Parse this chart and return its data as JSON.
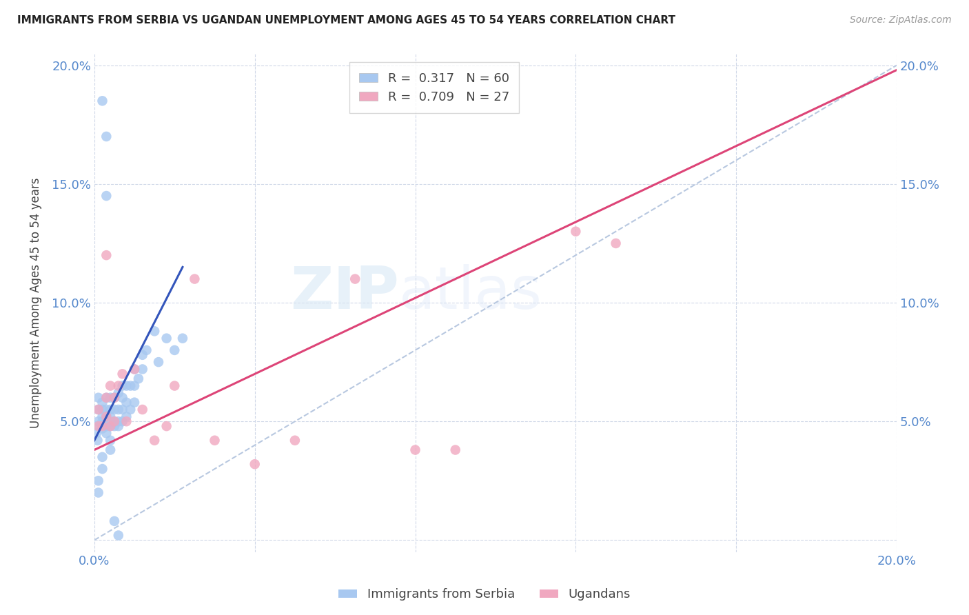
{
  "title": "IMMIGRANTS FROM SERBIA VS UGANDAN UNEMPLOYMENT AMONG AGES 45 TO 54 YEARS CORRELATION CHART",
  "source": "Source: ZipAtlas.com",
  "ylabel": "Unemployment Among Ages 45 to 54 years",
  "xlim": [
    0,
    0.2
  ],
  "ylim": [
    -0.005,
    0.205
  ],
  "legend1_label": "Immigrants from Serbia",
  "legend2_label": "Ugandans",
  "R1": 0.317,
  "N1": 60,
  "R2": 0.709,
  "N2": 27,
  "blue_color": "#a8c8f0",
  "pink_color": "#f0a8c0",
  "blue_line_color": "#3355bb",
  "pink_line_color": "#dd4477",
  "diagonal_color": "#b8c8e0",
  "serbia_x": [
    0.0005,
    0.0008,
    0.001,
    0.001,
    0.001,
    0.001,
    0.002,
    0.002,
    0.002,
    0.002,
    0.002,
    0.003,
    0.003,
    0.003,
    0.003,
    0.003,
    0.004,
    0.004,
    0.004,
    0.004,
    0.004,
    0.005,
    0.005,
    0.005,
    0.005,
    0.006,
    0.006,
    0.006,
    0.006,
    0.007,
    0.007,
    0.007,
    0.007,
    0.008,
    0.008,
    0.008,
    0.009,
    0.009,
    0.01,
    0.01,
    0.01,
    0.011,
    0.012,
    0.012,
    0.013,
    0.015,
    0.016,
    0.018,
    0.02,
    0.022,
    0.001,
    0.001,
    0.002,
    0.002,
    0.002,
    0.003,
    0.003,
    0.004,
    0.005,
    0.006
  ],
  "serbia_y": [
    0.045,
    0.042,
    0.048,
    0.05,
    0.055,
    0.06,
    0.047,
    0.05,
    0.052,
    0.055,
    0.058,
    0.045,
    0.048,
    0.052,
    0.055,
    0.06,
    0.042,
    0.048,
    0.052,
    0.055,
    0.06,
    0.048,
    0.05,
    0.055,
    0.06,
    0.048,
    0.05,
    0.055,
    0.062,
    0.05,
    0.055,
    0.06,
    0.065,
    0.052,
    0.058,
    0.065,
    0.055,
    0.065,
    0.058,
    0.065,
    0.072,
    0.068,
    0.072,
    0.078,
    0.08,
    0.088,
    0.075,
    0.085,
    0.08,
    0.085,
    0.02,
    0.025,
    0.03,
    0.035,
    0.185,
    0.17,
    0.145,
    0.038,
    0.008,
    0.002
  ],
  "serbia_line_x": [
    0.0,
    0.022
  ],
  "serbia_line_y": [
    0.042,
    0.115
  ],
  "uganda_x": [
    0.001,
    0.001,
    0.002,
    0.003,
    0.003,
    0.004,
    0.004,
    0.005,
    0.005,
    0.006,
    0.007,
    0.008,
    0.01,
    0.012,
    0.015,
    0.018,
    0.02,
    0.025,
    0.03,
    0.04,
    0.05,
    0.065,
    0.08,
    0.09,
    0.12,
    0.13,
    0.003
  ],
  "uganda_y": [
    0.048,
    0.055,
    0.048,
    0.052,
    0.06,
    0.048,
    0.065,
    0.05,
    0.06,
    0.065,
    0.07,
    0.05,
    0.072,
    0.055,
    0.042,
    0.048,
    0.065,
    0.11,
    0.042,
    0.032,
    0.042,
    0.11,
    0.038,
    0.038,
    0.13,
    0.125,
    0.12
  ],
  "uganda_line_x": [
    0.0,
    0.2
  ],
  "uganda_line_y": [
    0.038,
    0.198
  ]
}
